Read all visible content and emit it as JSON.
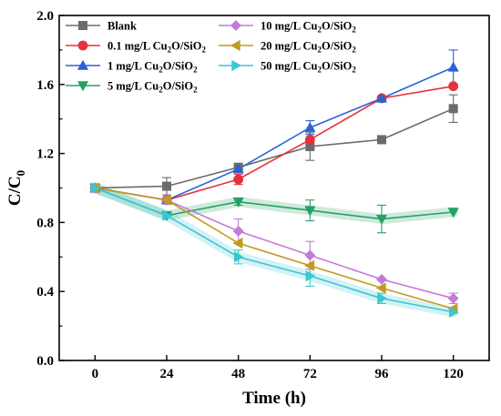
{
  "chart_data": {
    "type": "line",
    "xlabel": "Time (h)",
    "ylabel": {
      "base": "C/C",
      "sub": "0"
    },
    "x": [
      0,
      24,
      48,
      72,
      96,
      120
    ],
    "xticks": [
      "0",
      "24",
      "48",
      "72",
      "96",
      "120"
    ],
    "yticks": [
      "0.0",
      "0.4",
      "0.8",
      "1.2",
      "1.6",
      "2.0"
    ],
    "xlim": [
      -12,
      132
    ],
    "ylim": [
      0,
      2.0
    ],
    "grid": false,
    "legend_position": "top-left, two columns",
    "series": [
      {
        "name": "Blank",
        "legend": {
          "pre": "Blank"
        },
        "marker": "square",
        "color": "#6b6b6b",
        "values": [
          1.0,
          1.01,
          1.12,
          1.24,
          1.28,
          1.46
        ],
        "err": [
          0,
          0.05,
          0.01,
          0.08,
          0,
          0.08
        ]
      },
      {
        "name": "0.1 mg/L Cu2O/SiO2",
        "legend": {
          "pre": "0.1 mg/L Cu",
          "s1": "2",
          "mid": "O/SiO",
          "s2": "2"
        },
        "marker": "circle",
        "color": "#e8303c",
        "values": [
          1.0,
          0.93,
          1.05,
          1.28,
          1.52,
          1.59
        ],
        "err": [
          0,
          0,
          0.03,
          0.05,
          0,
          0
        ]
      },
      {
        "name": "1 mg/L Cu2O/SiO2",
        "legend": {
          "pre": "1 mg/L Cu",
          "s1": "2",
          "mid": "O/SiO",
          "s2": "2"
        },
        "marker": "triangle-up",
        "color": "#2a63d6",
        "values": [
          1.0,
          0.93,
          1.11,
          1.35,
          1.52,
          1.7
        ],
        "err": [
          0,
          0,
          0,
          0.04,
          0,
          0.1
        ]
      },
      {
        "name": "5 mg/L Cu2O/SiO2",
        "legend": {
          "pre": "5 mg/L Cu",
          "s1": "2",
          "mid": "O/SiO",
          "s2": "2"
        },
        "marker": "triangle-down",
        "color": "#26a065",
        "values": [
          1.0,
          0.84,
          0.92,
          0.87,
          0.82,
          0.86
        ],
        "err": [
          0,
          0,
          0.02,
          0.06,
          0.08,
          0
        ]
      },
      {
        "name": "10 mg/L Cu2O/SiO2",
        "legend": {
          "pre": "10 mg/L Cu",
          "s1": "2",
          "mid": "O/SiO",
          "s2": "2"
        },
        "marker": "diamond",
        "color": "#c47bd6",
        "values": [
          1.0,
          0.93,
          0.75,
          0.61,
          0.47,
          0.36
        ],
        "err": [
          0,
          0,
          0.07,
          0.08,
          0,
          0.03
        ]
      },
      {
        "name": "20 mg/L Cu2O/SiO2",
        "legend": {
          "pre": "20 mg/L Cu",
          "s1": "2",
          "mid": "O/SiO",
          "s2": "2"
        },
        "marker": "triangle-left",
        "color": "#c49a1c",
        "values": [
          1.0,
          0.93,
          0.68,
          0.55,
          0.42,
          0.3
        ],
        "err": [
          0,
          0,
          0,
          0,
          0,
          0
        ]
      },
      {
        "name": "50 mg/L Cu2O/SiO2",
        "legend": {
          "pre": "50 mg/L Cu",
          "s1": "2",
          "mid": "O/SiO",
          "s2": "2"
        },
        "marker": "triangle-right",
        "color": "#3cc6d2",
        "values": [
          1.0,
          0.84,
          0.6,
          0.49,
          0.36,
          0.28
        ],
        "err": [
          0,
          0,
          0.04,
          0.06,
          0.03,
          0
        ]
      }
    ]
  }
}
